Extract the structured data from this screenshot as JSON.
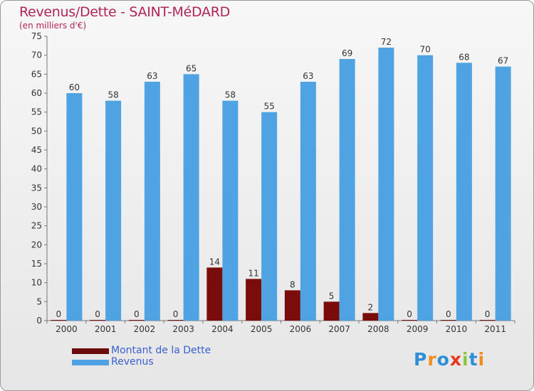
{
  "title": "Revenus/Dette - SAINT-MéDARD",
  "subtitle": "(en milliers d'€)",
  "chart_data": {
    "type": "bar",
    "categories": [
      "2000",
      "2001",
      "2002",
      "2003",
      "2004",
      "2005",
      "2006",
      "2007",
      "2008",
      "2009",
      "2010",
      "2011"
    ],
    "series": [
      {
        "name": "Montant de la Dette",
        "color": "#7a0c0c",
        "values": [
          0,
          0,
          0,
          0,
          14,
          11,
          8,
          5,
          2,
          0,
          0,
          0
        ]
      },
      {
        "name": "Revenus",
        "color": "#4fa3e3",
        "values": [
          60,
          58,
          63,
          65,
          58,
          55,
          63,
          69,
          72,
          70,
          68,
          67
        ]
      }
    ],
    "ylim": [
      0,
      75
    ],
    "yticks": [
      0,
      5,
      10,
      15,
      20,
      25,
      30,
      35,
      40,
      45,
      50,
      55,
      60,
      65,
      70,
      75
    ],
    "grid": false,
    "legend": "bottom-left"
  },
  "legend": {
    "dette_label": "Montant de la Dette",
    "revenus_label": "Revenus"
  },
  "logo": {
    "text": "Proxiti",
    "letters": [
      "P",
      "r",
      "o",
      "x",
      "i",
      "t",
      "i"
    ],
    "colors": [
      "#2f8fd6",
      "#f28c1e",
      "#2f8fd6",
      "#e8371f",
      "#8cc63f",
      "#2f8fd6",
      "#f28c1e"
    ]
  }
}
